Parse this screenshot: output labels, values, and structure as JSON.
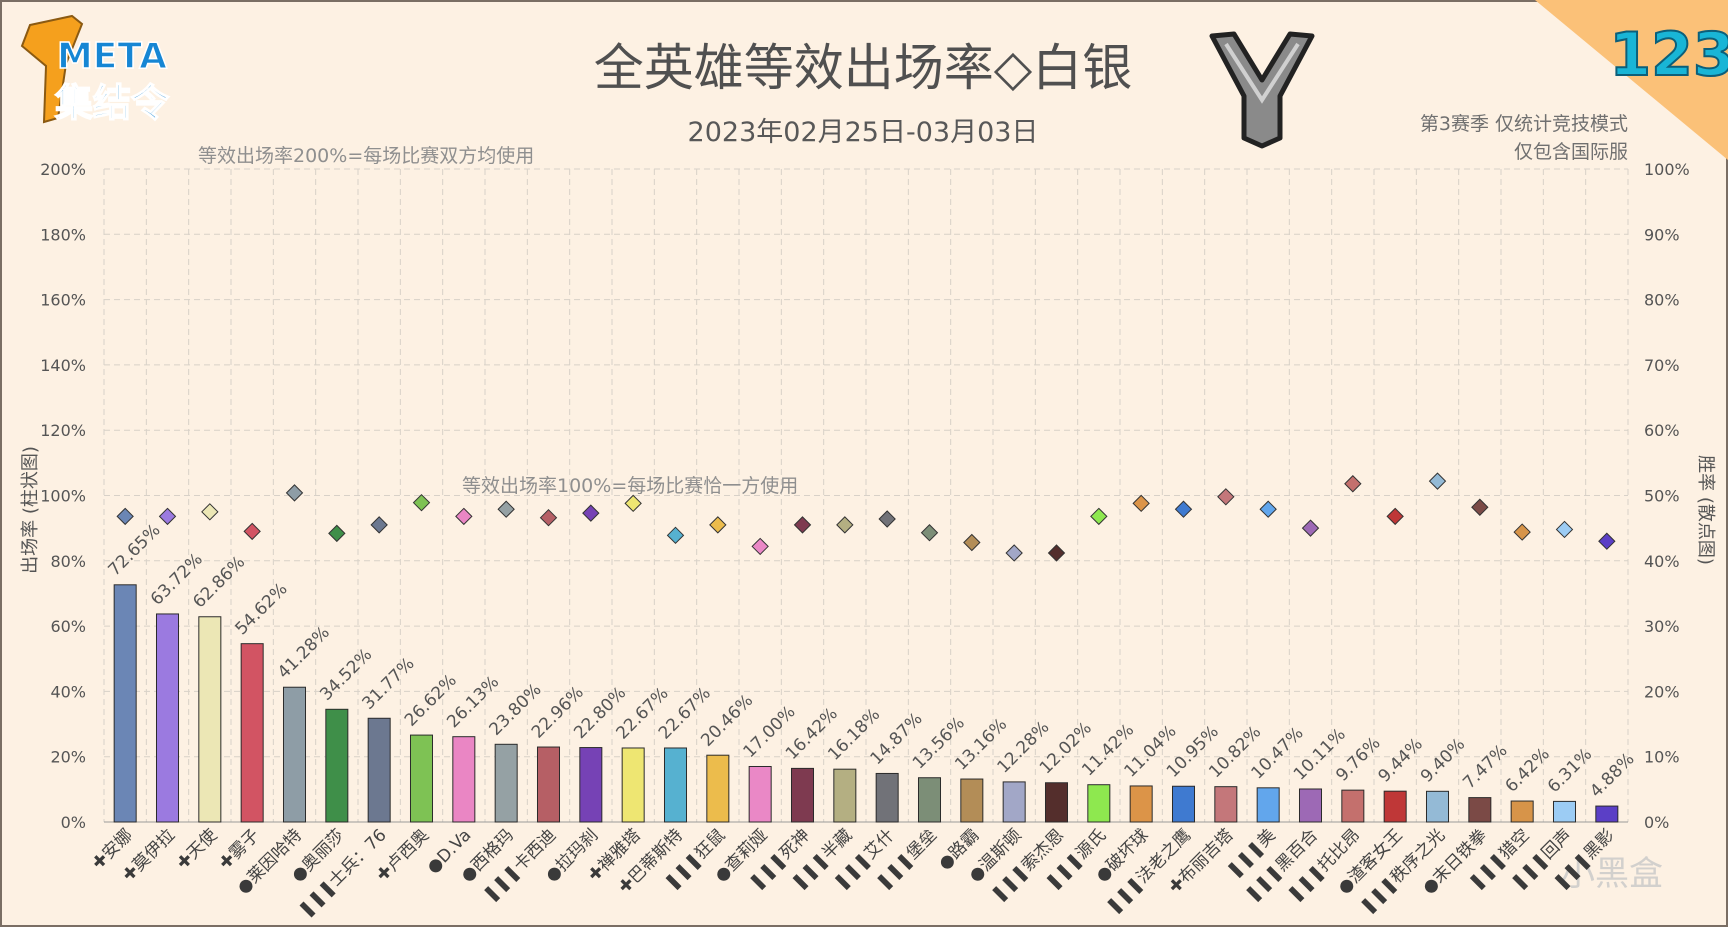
{
  "brand": {
    "logo_line1": "META",
    "logo_line2": "集结令",
    "issue_number": "123"
  },
  "header": {
    "title": "全英雄等效出场率◇白银",
    "date_range": "2023年02月25日-03月03日",
    "season_note": "第3赛季 仅统计竞技模式",
    "server_note": "仅包含国际服",
    "watermark": "小黑盒"
  },
  "chart_data": {
    "type": "bar",
    "ylabel": "出场率 (柱状图)",
    "y2label": "胜率 (散点图)",
    "ylim": [
      0,
      200
    ],
    "y2lim": [
      0,
      100
    ],
    "y_ticks": [
      "0%",
      "20%",
      "40%",
      "60%",
      "80%",
      "100%",
      "120%",
      "140%",
      "160%",
      "180%",
      "200%"
    ],
    "y2_ticks": [
      "0%",
      "10%",
      "20%",
      "30%",
      "40%",
      "50%",
      "60%",
      "70%",
      "80%",
      "90%",
      "100%"
    ],
    "grid": true,
    "annotations": {
      "line200": "等效出场率200%=每场比赛双方均使用",
      "line100": "等效出场率100%=每场比赛恰一方使用"
    },
    "categories": [
      "安娜",
      "莫伊拉",
      "天使",
      "雾子",
      "莱因哈特",
      "奥丽莎",
      "士兵：76",
      "卢西奥",
      "D.Va",
      "西格玛",
      "卡西迪",
      "拉玛刹",
      "禅雅塔",
      "巴蒂斯特",
      "狂鼠",
      "查莉娅",
      "死神",
      "半藏",
      "艾什",
      "堡垒",
      "路霸",
      "温斯顿",
      "索杰恩",
      "源氏",
      "破坏球",
      "法老之鹰",
      "布丽吉塔",
      "美",
      "黑百合",
      "托比昂",
      "渣客女王",
      "秩序之光",
      "末日铁拳",
      "猎空",
      "回声",
      "黑影"
    ],
    "roles": [
      "support",
      "support",
      "support",
      "support",
      "tank",
      "tank",
      "damage",
      "support",
      "tank",
      "tank",
      "damage",
      "tank",
      "support",
      "support",
      "damage",
      "tank",
      "damage",
      "damage",
      "damage",
      "damage",
      "tank",
      "tank",
      "damage",
      "damage",
      "tank",
      "damage",
      "support",
      "damage",
      "damage",
      "damage",
      "tank",
      "damage",
      "tank",
      "damage",
      "damage",
      "damage"
    ],
    "role_icons": {
      "support": "✚",
      "tank": "●",
      "damage": "❚❚❚"
    },
    "values": [
      72.65,
      63.72,
      62.86,
      54.62,
      41.28,
      34.52,
      31.77,
      26.62,
      26.13,
      23.8,
      22.96,
      22.8,
      22.67,
      22.67,
      20.46,
      17.0,
      16.42,
      16.18,
      14.87,
      13.56,
      13.16,
      12.28,
      12.02,
      11.42,
      11.04,
      10.95,
      10.82,
      10.47,
      10.11,
      9.76,
      9.44,
      9.4,
      7.47,
      6.42,
      6.31,
      4.88
    ],
    "value_labels": [
      "72.65%",
      "63.72%",
      "62.86%",
      "54.62%",
      "41.28%",
      "34.52%",
      "31.77%",
      "26.62%",
      "26.13%",
      "23.80%",
      "22.96%",
      "22.80%",
      "22.67%",
      "22.67%",
      "20.46%",
      "17.00%",
      "16.42%",
      "16.18%",
      "14.87%",
      "13.56%",
      "13.16%",
      "12.28%",
      "12.02%",
      "11.42%",
      "11.04%",
      "10.95%",
      "10.82%",
      "10.47%",
      "10.11%",
      "9.76%",
      "9.44%",
      "9.40%",
      "7.47%",
      "6.42%",
      "6.31%",
      "4.88%"
    ],
    "win_rates": [
      46.8,
      46.8,
      47.5,
      44.5,
      50.4,
      44.2,
      45.5,
      48.9,
      46.8,
      47.9,
      46.6,
      47.3,
      48.8,
      43.9,
      45.5,
      42.2,
      45.5,
      45.5,
      46.4,
      44.3,
      42.8,
      41.2,
      41.2,
      46.8,
      48.8,
      47.9,
      49.8,
      47.9,
      45.0,
      51.8,
      46.8,
      52.2,
      48.2,
      44.4,
      44.8,
      43.0
    ],
    "colors": [
      "#6b86b5",
      "#9b7ae0",
      "#ece7b5",
      "#d25463",
      "#8e9da6",
      "#3f8f49",
      "#6c7890",
      "#7ec254",
      "#ea86c4",
      "#95a1a4",
      "#b65f65",
      "#7642b5",
      "#eee672",
      "#56b1d0",
      "#ecbc4c",
      "#ea88c6",
      "#7e3a50",
      "#b4af82",
      "#717278",
      "#7c8e77",
      "#b38d57",
      "#a2a7c7",
      "#542e2c",
      "#8ee84f",
      "#dc9448",
      "#3f7ad0",
      "#c4777a",
      "#62a6ec",
      "#9d69b5",
      "#c4706d",
      "#bf3737",
      "#94bad6",
      "#7b4a46",
      "#d79449",
      "#9cccf4",
      "#5b3fc6"
    ]
  }
}
